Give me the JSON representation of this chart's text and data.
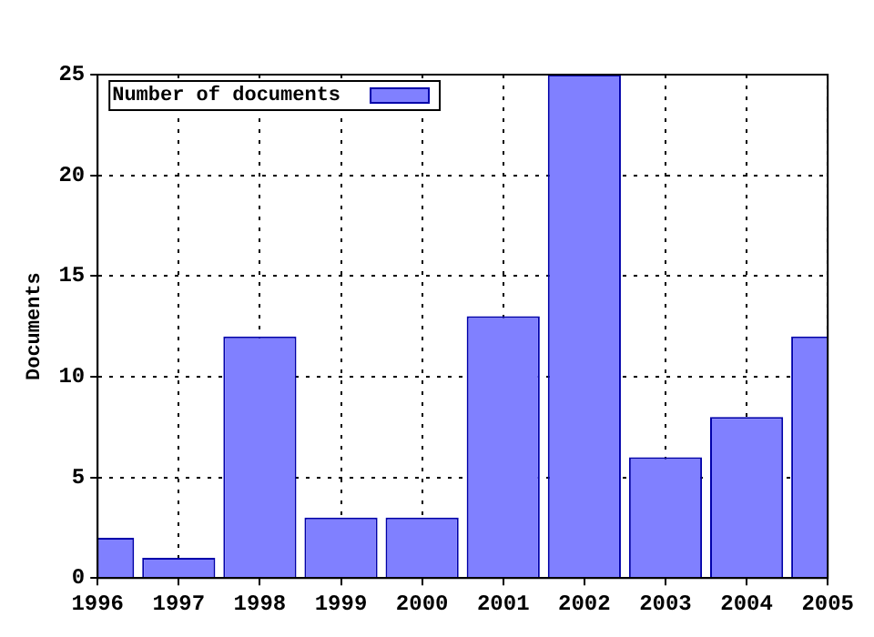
{
  "chart_data": {
    "type": "bar",
    "ylabel": "Documents",
    "x": [
      1996,
      1997,
      1998,
      1999,
      2000,
      2001,
      2002,
      2003,
      2004,
      2005
    ],
    "series": [
      {
        "name": "Number of documents",
        "color": "#8080ff",
        "values": [
          2,
          1,
          12,
          3,
          3,
          13,
          25,
          6,
          8,
          12
        ]
      }
    ],
    "xlim": [
      1996,
      2005
    ],
    "xticks": [
      1996,
      1997,
      1998,
      1999,
      2000,
      2001,
      2002,
      2003,
      2004,
      2005
    ],
    "ylim": [
      0,
      25
    ],
    "yticks": [
      0,
      5,
      10,
      15,
      20,
      25
    ],
    "grid": true,
    "legend": "top left"
  }
}
